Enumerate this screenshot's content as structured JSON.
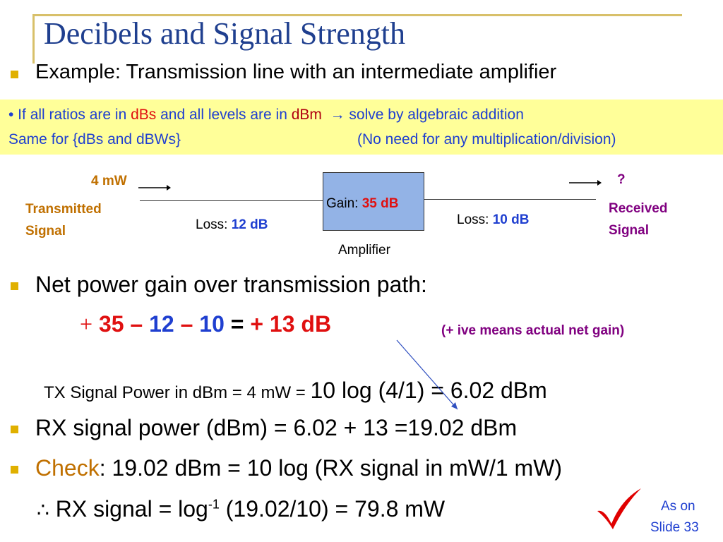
{
  "title": "Decibels and Signal Strength",
  "example_bullet": "Example: Transmission line with an intermediate amplifier",
  "note": {
    "line1_prefix": "• If all ratios are in ",
    "line1_dbs": "dBs",
    "line1_mid": " and all levels are in ",
    "line1_dbm": "dBm",
    "line1_arrow": "→",
    "line1_suffix": " solve by algebraic addition",
    "line2_left": "Same for {dBs and dBWs}",
    "line2_right": "(No need for any multiplication/division)"
  },
  "diagram": {
    "tx_power": "4 mW",
    "tx_label_1": "Transmitted",
    "tx_label_2": "Signal",
    "loss1_label": "Loss: ",
    "loss1_value": "12 dB",
    "gain_label": "Gain: ",
    "gain_value": "35 dB",
    "amplifier_label": "Amplifier",
    "loss2_label": "Loss: ",
    "loss2_value": "10 dB",
    "rx_unknown": "?",
    "rx_label_1": "Received",
    "rx_label_2": "Signal"
  },
  "net_gain_bullet": "Net power gain over transmission path:",
  "equation": {
    "plus_sign": "+",
    "gain": "35",
    "minus1": " – ",
    "loss1": "12",
    "minus2": " – ",
    "loss2": "10",
    "equals": " = ",
    "result": "+ 13 dB",
    "remark": "(+ ive means actual net gain)"
  },
  "tx_power_line": {
    "prefix": "TX Signal Power in dBm = 4 mW = ",
    "formula": "10 log (4/1) = 6.02 dBm"
  },
  "rx_power_bullet": "RX signal power (dBm) = 6.02 + 13 =19.02 dBm",
  "check_bullet": {
    "check_word": "Check",
    "rest": ": 19.02 dBm = 10 log (RX signal in mW/1 mW)"
  },
  "therefore_line": {
    "symbol": "∴",
    "prefix": "RX signal = log",
    "superscript": "-1",
    "suffix": " (19.02/10) = 79.8 mW"
  },
  "reference": {
    "line1": "As on",
    "line2": "Slide 33"
  },
  "colors": {
    "title": "#1f3f8f",
    "accent_red": "#e01010",
    "accent_blue": "#1f3fd0",
    "label_brown": "#c07000",
    "label_purple": "#800080",
    "note_background": "#ffff99",
    "amplifier_fill": "#93b3e6"
  }
}
